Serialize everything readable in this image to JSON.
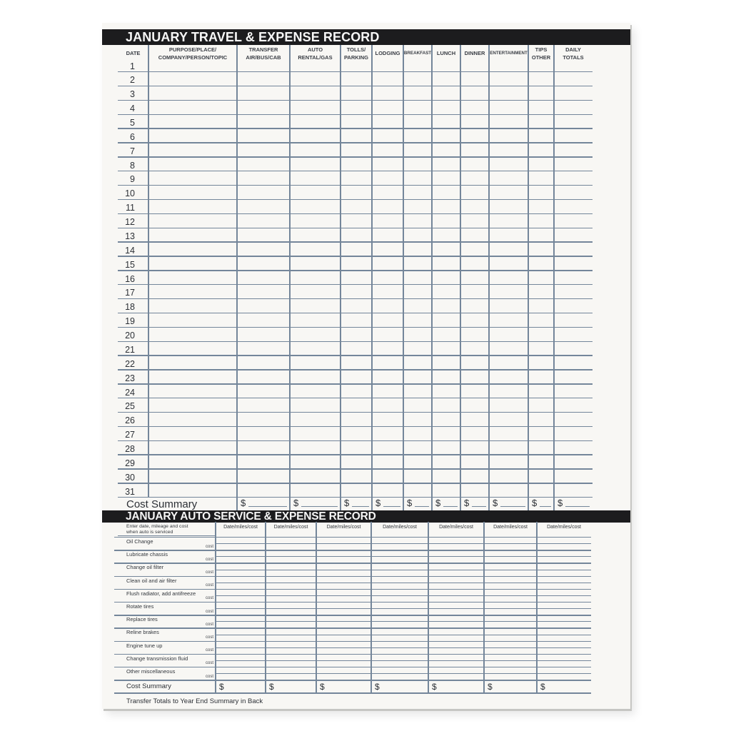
{
  "document": {
    "travel_section_title": "JANUARY TRAVEL & EXPENSE RECORD",
    "auto_section_title": "JANUARY AUTO SERVICE & EXPENSE RECORD",
    "footer_note": "Transfer Totals to Year End Summary in Back"
  },
  "colors": {
    "title_bar": "#1c1c1e",
    "grid_line": "#74869a",
    "sheet": "#f8f7f4",
    "background": "#ffffff",
    "ink": "#2c3036"
  },
  "travel_table": {
    "column_headers": [
      [
        "DATE"
      ],
      [
        "PURPOSE/PLACE/",
        "COMPANY/PERSON/TOPIC"
      ],
      [
        "TRANSFER",
        "AIR/BUS/CAB"
      ],
      [
        "AUTO",
        "RENTAL/GAS"
      ],
      [
        "TOLLS/",
        "PARKING"
      ],
      [
        "LODGING"
      ],
      [
        "BREAKFAST"
      ],
      [
        "LUNCH"
      ],
      [
        "DINNER"
      ],
      [
        "ENTERTAINMENT"
      ],
      [
        "TIPS",
        "OTHER"
      ],
      [
        "DAILY",
        "TOTALS"
      ]
    ],
    "dates": [
      "1",
      "2",
      "3",
      "4",
      "5",
      "6",
      "7",
      "8",
      "9",
      "10",
      "11",
      "12",
      "13",
      "14",
      "15",
      "16",
      "17",
      "18",
      "19",
      "20",
      "21",
      "22",
      "23",
      "24",
      "25",
      "26",
      "27",
      "28",
      "29",
      "30",
      "31"
    ],
    "cost_summary_label": "Cost Summary",
    "currency_symbol": "$"
  },
  "auto_table": {
    "row_header_intro": [
      "Enter date, mileage and cost",
      "when auto is serviced"
    ],
    "data_column_header": "Date/miles/cost",
    "data_column_count": 7,
    "service_rows": [
      "Oil Change",
      "Lubricate chassis",
      "Change oil filter",
      "Clean oil and air filter",
      "Flush radiator, add antifreeze",
      "Rotate tires",
      "Replace tires",
      "Reline brakes",
      "Engine tune up",
      "Change transmission fluid",
      "Other miscellaneous"
    ],
    "cost_sublabel": "cost",
    "cost_summary_label": "Cost Summary",
    "currency_symbol": "$"
  }
}
